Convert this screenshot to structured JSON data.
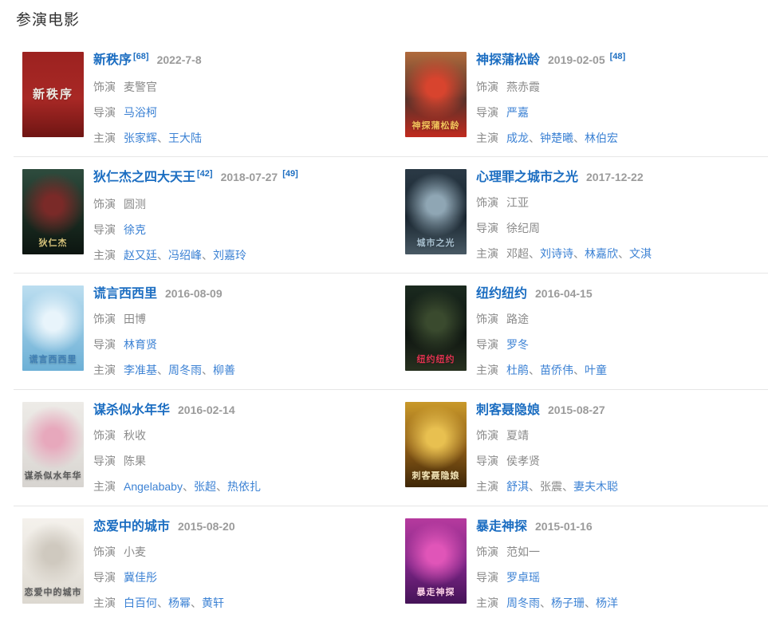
{
  "page": {
    "title": "参演电影"
  },
  "ui": {
    "sep": "、",
    "role_label": "饰演",
    "director_label": "导演",
    "cast_label": "主演"
  },
  "colors": {
    "title_link": "#1b6dc1",
    "body_link": "#3c82d4",
    "label_gray": "#8a8a8a",
    "date_gray": "#9b9b9b",
    "divider": "#e6e6e6"
  },
  "movies": [
    {
      "title": "新秩序",
      "ref_after_title": "[68]",
      "date": "2022-7-8",
      "role": "麦警官",
      "director": {
        "name": "马浴柯",
        "link": true
      },
      "cast": [
        {
          "name": "张家辉",
          "link": true
        },
        {
          "name": "王大陆",
          "link": true
        }
      ],
      "poster": {
        "colors": [
          "#9c2220",
          "#a82825",
          "#6f1513"
        ],
        "text": "新秩序",
        "text_color": "#ece9e2"
      }
    },
    {
      "title": "神探蒲松龄",
      "ref_after_date": "[48]",
      "date": "2019-02-05",
      "role": "燕赤霞",
      "director": {
        "name": "严嘉",
        "link": true
      },
      "cast": [
        {
          "name": "成龙",
          "link": true
        },
        {
          "name": "钟楚曦",
          "link": true
        },
        {
          "name": "林伯宏",
          "link": true
        }
      ],
      "poster": {
        "colors": [
          "#b06a3c",
          "#55322a",
          "#c02a1e"
        ],
        "accent": "#d8442e",
        "text": "神探蒲松龄",
        "text_color": "#f2c35c"
      }
    },
    {
      "title": "狄仁杰之四大天王",
      "ref_after_title": "[42]",
      "ref_after_date": "[49]",
      "date": "2018-07-27",
      "role": "圆测",
      "director": {
        "name": "徐克",
        "link": true
      },
      "cast": [
        {
          "name": "赵又廷",
          "link": true
        },
        {
          "name": "冯绍峰",
          "link": true
        },
        {
          "name": "刘嘉玲",
          "link": true
        }
      ],
      "poster": {
        "colors": [
          "#2e4c3e",
          "#1a2d22",
          "#0c1510"
        ],
        "accent": "#7a2a28",
        "text": "狄仁杰",
        "text_color": "#d9c57c"
      }
    },
    {
      "title": "心理罪之城市之光",
      "date": "2017-12-22",
      "role": "江亚",
      "director": {
        "name": "徐纪周",
        "link": false
      },
      "cast": [
        {
          "name": "邓超",
          "link": false
        },
        {
          "name": "刘诗诗",
          "link": true
        },
        {
          "name": "林嘉欣",
          "link": true
        },
        {
          "name": "文淇",
          "link": true
        }
      ],
      "poster": {
        "colors": [
          "#2b3a46",
          "#17232d",
          "#485964"
        ],
        "accent": "#8fa6b4",
        "text": "城市之光",
        "text_color": "#a8c0cf"
      }
    },
    {
      "title": "谎言西西里",
      "date": "2016-08-09",
      "role": "田博",
      "director": {
        "name": "林育贤",
        "link": true
      },
      "cast": [
        {
          "name": "李准基",
          "link": true
        },
        {
          "name": "周冬雨",
          "link": true
        },
        {
          "name": "柳善",
          "link": true
        }
      ],
      "poster": {
        "colors": [
          "#bcdef0",
          "#8fc4e1",
          "#6cb0d6"
        ],
        "accent": "#e8f4fb",
        "text": "谎言西西里",
        "text_color": "#3f7fb5"
      }
    },
    {
      "title": "纽约纽约",
      "date": "2016-04-15",
      "role": "路途",
      "director": {
        "name": "罗冬",
        "link": true
      },
      "cast": [
        {
          "name": "杜鹃",
          "link": true
        },
        {
          "name": "苗侨伟",
          "link": true
        },
        {
          "name": "叶童",
          "link": true
        }
      ],
      "poster": {
        "colors": [
          "#1b2a1f",
          "#0d1410",
          "#27301f"
        ],
        "accent": "#3a4a2e",
        "text": "纽约纽约",
        "text_color": "#e23250"
      }
    },
    {
      "title": "谋杀似水年华",
      "date": "2016-02-14",
      "role": "秋收",
      "director": {
        "name": "陈果",
        "link": false
      },
      "cast": [
        {
          "name": "Angelababy",
          "link": true
        },
        {
          "name": "张超",
          "link": true
        },
        {
          "name": "热依扎",
          "link": true
        }
      ],
      "poster": {
        "colors": [
          "#edebe7",
          "#e3e0dc",
          "#d7d4d0"
        ],
        "accent": "#e7a8bc",
        "text": "谋杀似水年华",
        "text_color": "#5a5a5a"
      }
    },
    {
      "title": "刺客聂隐娘",
      "date": "2015-08-27",
      "role": "夏靖",
      "director": {
        "name": "侯孝贤",
        "link": false
      },
      "cast": [
        {
          "name": "舒淇",
          "link": true
        },
        {
          "name": "张震",
          "link": false
        },
        {
          "name": "妻夫木聪",
          "link": true
        }
      ],
      "poster": {
        "colors": [
          "#c9992a",
          "#8a5a16",
          "#3f2708"
        ],
        "accent": "#e8c050",
        "text": "刺客聂隐娘",
        "text_color": "#f5e6b8"
      }
    },
    {
      "title": "恋爱中的城市",
      "date": "2015-08-20",
      "role": "小麦",
      "director": {
        "name": "冀佳彤",
        "link": true
      },
      "cast": [
        {
          "name": "白百何",
          "link": true
        },
        {
          "name": "杨幂",
          "link": true
        },
        {
          "name": "黄轩",
          "link": true
        }
      ],
      "poster": {
        "colors": [
          "#f4f1ec",
          "#eae6df",
          "#dcd8d0"
        ],
        "accent": "#cfc9bf",
        "text": "恋爱中的城市",
        "text_color": "#5c5c5c"
      }
    },
    {
      "title": "暴走神探",
      "date": "2015-01-16",
      "role": "范如一",
      "director": {
        "name": "罗卓瑶",
        "link": true
      },
      "cast": [
        {
          "name": "周冬雨",
          "link": true
        },
        {
          "name": "杨子珊",
          "link": true
        },
        {
          "name": "杨洋",
          "link": true
        }
      ],
      "poster": {
        "colors": [
          "#b63a9e",
          "#7c2586",
          "#451358"
        ],
        "accent": "#e055b8",
        "text": "暴走神探",
        "text_color": "#ffd2ea"
      }
    }
  ]
}
